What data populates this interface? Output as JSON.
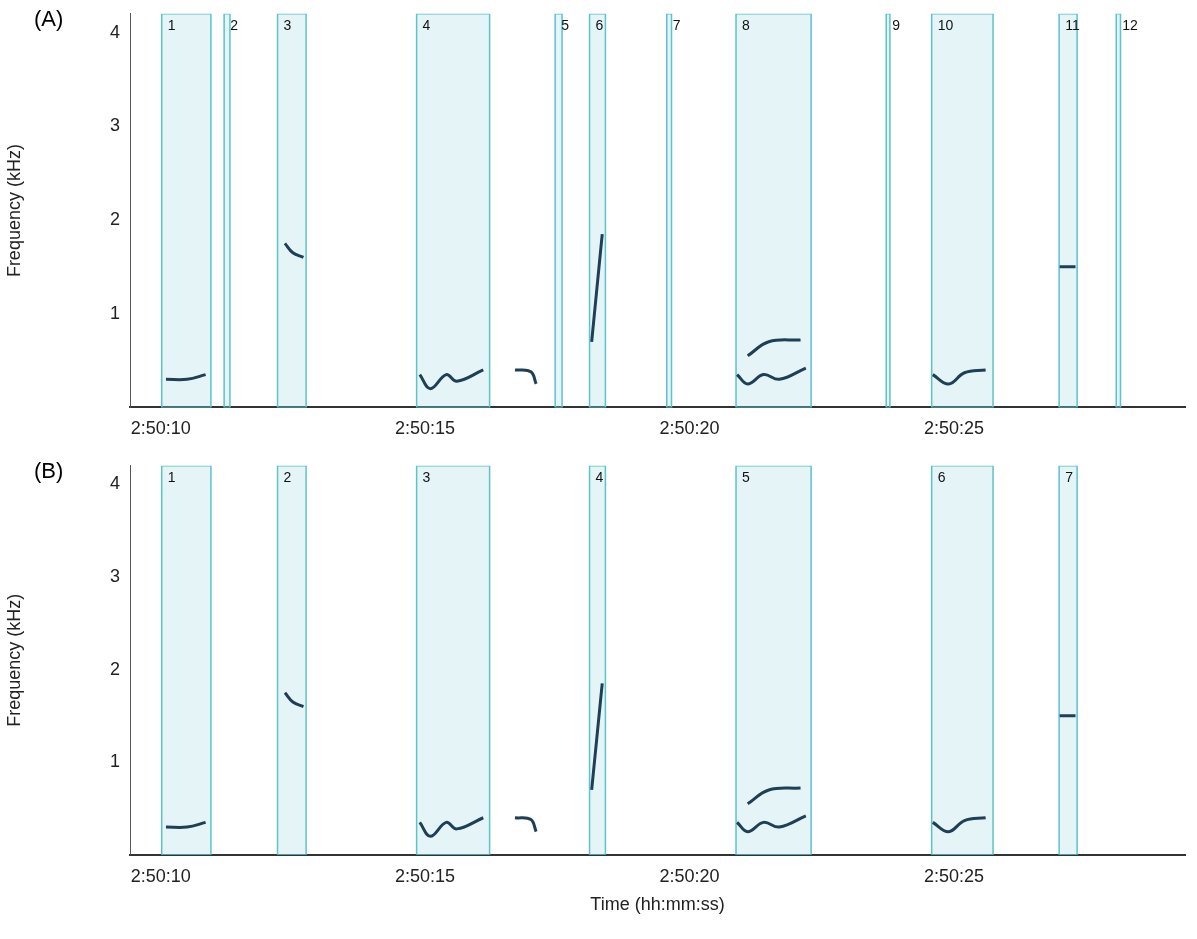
{
  "chart_data": [
    {
      "type": "spectrogram",
      "panel": "(A)",
      "y_label": "Frequency (kHz)",
      "xlim": [
        10209.42,
        10229.37
      ],
      "ylim": [
        0,
        4.2
      ],
      "xticks": [
        {
          "value": 10210,
          "label": "2:50:10"
        },
        {
          "value": 10215,
          "label": "2:50:15"
        },
        {
          "value": 10220,
          "label": "2:50:20"
        },
        {
          "value": 10225,
          "label": "2:50:25"
        }
      ],
      "yticks": [
        1,
        2,
        3,
        4
      ],
      "grid": false,
      "color": "#5bc3cb",
      "selections": [
        {
          "label": "1",
          "start": 10210.02,
          "end": 10210.95
        },
        {
          "label": "2",
          "start": 10211.2,
          "end": 10211.31
        },
        {
          "label": "3",
          "start": 10212.21,
          "end": 10212.75
        },
        {
          "label": "4",
          "start": 10214.84,
          "end": 10216.22
        },
        {
          "label": "5",
          "start": 10217.46,
          "end": 10217.59
        },
        {
          "label": "6",
          "start": 10218.11,
          "end": 10218.41
        },
        {
          "label": "7",
          "start": 10219.57,
          "end": 10219.66
        },
        {
          "label": "8",
          "start": 10220.88,
          "end": 10222.3
        },
        {
          "label": "9",
          "start": 10223.72,
          "end": 10223.79
        },
        {
          "label": "10",
          "start": 10224.58,
          "end": 10225.74
        },
        {
          "label": "11",
          "start": 10226.99,
          "end": 10227.33
        },
        {
          "label": "12",
          "start": 10228.07,
          "end": 10228.15
        }
      ],
      "contours": [
        {
          "x": [
            10210.1,
            10210.5,
            10210.85
          ],
          "y": [
            0.3,
            0.3,
            0.35
          ]
        },
        {
          "x": [
            10212.35,
            10212.5,
            10212.7
          ],
          "y": [
            1.75,
            1.65,
            1.6
          ]
        },
        {
          "x": [
            10214.9,
            10215.1,
            10215.4,
            10215.6,
            10216.1
          ],
          "y": [
            0.35,
            0.2,
            0.35,
            0.28,
            0.4
          ]
        },
        {
          "x": [
            10216.7,
            10217.0,
            10217.1
          ],
          "y": [
            0.4,
            0.38,
            0.25
          ]
        },
        {
          "x": [
            10218.15,
            10218.35
          ],
          "y": [
            0.7,
            1.85
          ]
        },
        {
          "x": [
            10220.9,
            10221.1,
            10221.4,
            10221.7,
            10222.2
          ],
          "y": [
            0.35,
            0.25,
            0.35,
            0.3,
            0.42
          ]
        },
        {
          "x": [
            10221.1,
            10221.5,
            10222.1
          ],
          "y": [
            0.55,
            0.7,
            0.72
          ]
        },
        {
          "x": [
            10224.6,
            10224.9,
            10225.2,
            10225.6
          ],
          "y": [
            0.35,
            0.25,
            0.37,
            0.4
          ]
        },
        {
          "x": [
            10227.0,
            10227.3
          ],
          "y": [
            1.5,
            1.5
          ]
        }
      ]
    },
    {
      "type": "spectrogram",
      "panel": "(B)",
      "y_label": "Frequency (kHz)",
      "x_label": "Time (hh:mm:ss)",
      "xlim": [
        10209.42,
        10229.37
      ],
      "ylim": [
        0,
        4.2
      ],
      "xticks": [
        {
          "value": 10210,
          "label": "2:50:10"
        },
        {
          "value": 10215,
          "label": "2:50:15"
        },
        {
          "value": 10220,
          "label": "2:50:20"
        },
        {
          "value": 10225,
          "label": "2:50:25"
        }
      ],
      "yticks": [
        1,
        2,
        3,
        4
      ],
      "grid": false,
      "color": "#5bc3cb",
      "selections": [
        {
          "label": "1",
          "start": 10210.02,
          "end": 10210.95
        },
        {
          "label": "2",
          "start": 10212.21,
          "end": 10212.75
        },
        {
          "label": "3",
          "start": 10214.84,
          "end": 10216.22
        },
        {
          "label": "4",
          "start": 10218.11,
          "end": 10218.41
        },
        {
          "label": "5",
          "start": 10220.88,
          "end": 10222.3
        },
        {
          "label": "6",
          "start": 10224.58,
          "end": 10225.74
        },
        {
          "label": "7",
          "start": 10226.99,
          "end": 10227.33
        }
      ],
      "contours": [
        {
          "x": [
            10210.1,
            10210.5,
            10210.85
          ],
          "y": [
            0.3,
            0.3,
            0.35
          ]
        },
        {
          "x": [
            10212.35,
            10212.5,
            10212.7
          ],
          "y": [
            1.75,
            1.65,
            1.6
          ]
        },
        {
          "x": [
            10214.9,
            10215.1,
            10215.4,
            10215.6,
            10216.1
          ],
          "y": [
            0.35,
            0.2,
            0.35,
            0.28,
            0.4
          ]
        },
        {
          "x": [
            10216.7,
            10217.0,
            10217.1
          ],
          "y": [
            0.4,
            0.38,
            0.25
          ]
        },
        {
          "x": [
            10218.15,
            10218.35
          ],
          "y": [
            0.7,
            1.85
          ]
        },
        {
          "x": [
            10220.9,
            10221.1,
            10221.4,
            10221.7,
            10222.2
          ],
          "y": [
            0.35,
            0.25,
            0.35,
            0.3,
            0.42
          ]
        },
        {
          "x": [
            10221.1,
            10221.5,
            10222.1
          ],
          "y": [
            0.55,
            0.7,
            0.72
          ]
        },
        {
          "x": [
            10224.6,
            10224.9,
            10225.2,
            10225.6
          ],
          "y": [
            0.35,
            0.25,
            0.37,
            0.4
          ]
        },
        {
          "x": [
            10227.0,
            10227.3
          ],
          "y": [
            1.5,
            1.5
          ]
        }
      ]
    }
  ]
}
